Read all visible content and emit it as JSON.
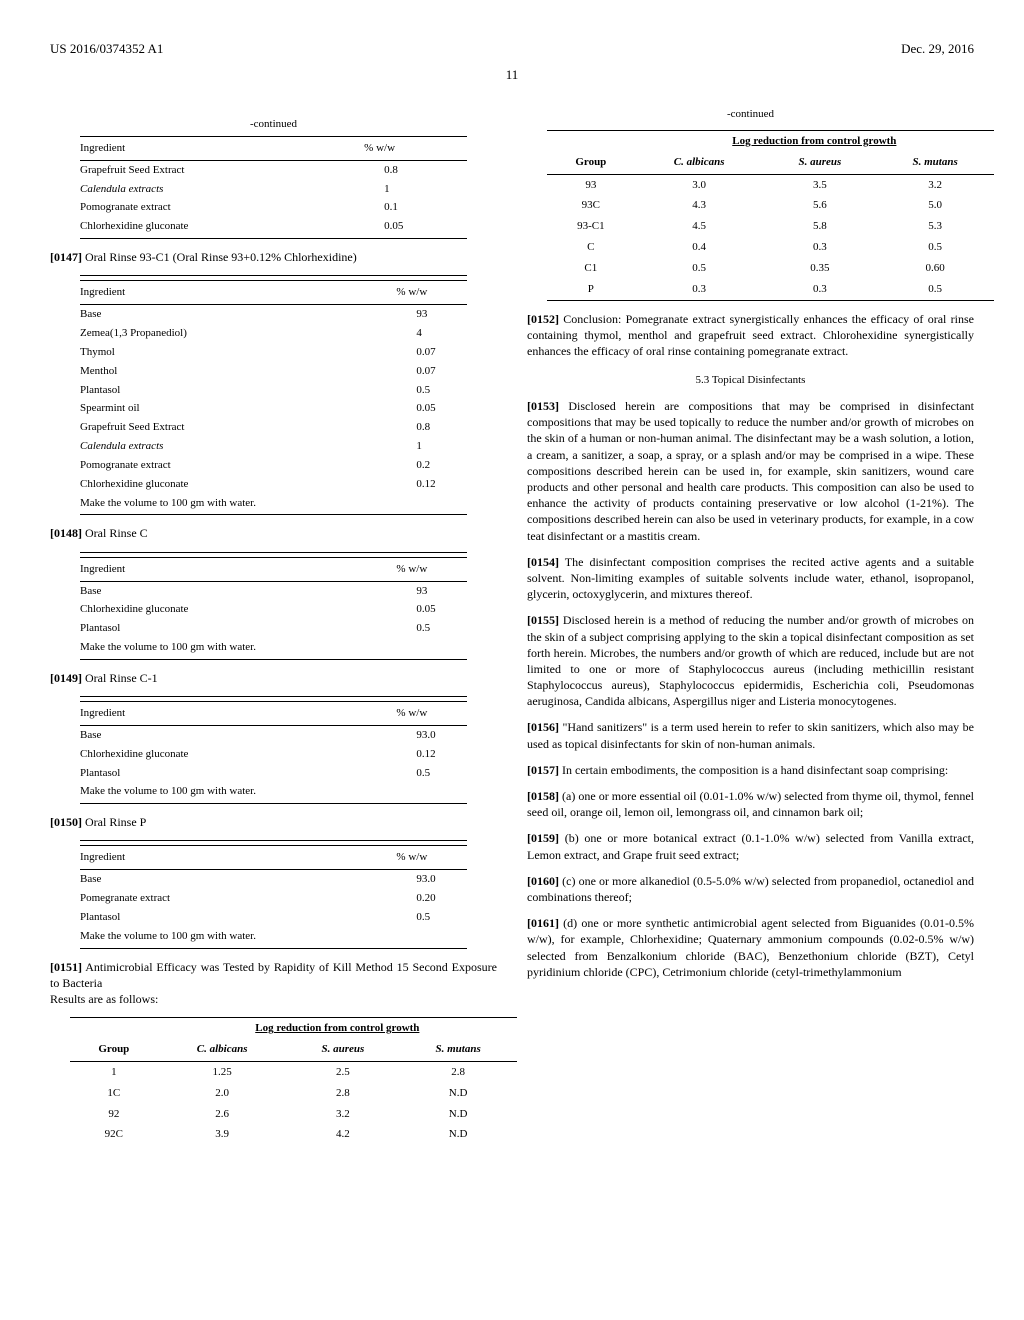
{
  "header": {
    "left": "US 2016/0374352 A1",
    "right": "Dec. 29, 2016"
  },
  "page_number": "11",
  "col1": {
    "table1": {
      "continued": "-continued",
      "headers": [
        "Ingredient",
        "% w/w"
      ],
      "rows": [
        [
          "Grapefruit Seed Extract",
          "0.8"
        ],
        [
          "Calendula extracts",
          "1"
        ],
        [
          "Pomogranate extract",
          "0.1"
        ],
        [
          "Chlorhexidine gluconate",
          "0.05"
        ]
      ]
    },
    "para147": {
      "num": "[0147]",
      "text": "Oral Rinse 93-C1 (Oral Rinse 93+0.12% Chlorhexidine)"
    },
    "table2": {
      "headers": [
        "Ingredient",
        "% w/w"
      ],
      "rows": [
        [
          "Base",
          "93"
        ],
        [
          "Zemea(1,3 Propanediol)",
          "4"
        ],
        [
          "Thymol",
          "0.07"
        ],
        [
          "Menthol",
          "0.07"
        ],
        [
          "Plantasol",
          "0.5"
        ],
        [
          "Spearmint oil",
          "0.05"
        ],
        [
          "Grapefruit Seed Extract",
          "0.8"
        ],
        [
          "Calendula extracts",
          "1"
        ],
        [
          "Pomogranate extract",
          "0.2"
        ],
        [
          "Chlorhexidine gluconate",
          "0.12"
        ],
        [
          "Make the volume to 100 gm with water.",
          ""
        ]
      ]
    },
    "para148": {
      "num": "[0148]",
      "text": "Oral Rinse C"
    },
    "table3": {
      "headers": [
        "Ingredient",
        "% w/w"
      ],
      "rows": [
        [
          "Base",
          "93"
        ],
        [
          "Chlorhexidine gluconate",
          "0.05"
        ],
        [
          "Plantasol",
          "0.5"
        ],
        [
          "Make the volume to 100 gm with water.",
          ""
        ]
      ]
    },
    "para149": {
      "num": "[0149]",
      "text": "Oral Rinse C-1"
    },
    "table4": {
      "headers": [
        "Ingredient",
        "% w/w"
      ],
      "rows": [
        [
          "Base",
          "93.0"
        ],
        [
          "Chlorhexidine gluconate",
          "0.12"
        ],
        [
          "Plantasol",
          "0.5"
        ],
        [
          "Make the volume to 100 gm with water.",
          ""
        ]
      ]
    },
    "para150": {
      "num": "[0150]",
      "text": "Oral Rinse P"
    },
    "table5": {
      "headers": [
        "Ingredient",
        "% w/w"
      ],
      "rows": [
        [
          "Base",
          "93.0"
        ],
        [
          "Pomegranate extract",
          "0.20"
        ],
        [
          "Plantasol",
          "0.5"
        ],
        [
          "Make the volume to 100 gm with water.",
          ""
        ]
      ]
    },
    "para151": {
      "num": "[0151]",
      "text": "Antimicrobial Efficacy was Tested by Rapidity of Kill Method 15 Second Exposure to Bacteria",
      "sub": "Results are as follows:"
    },
    "table6": {
      "spanhead": "Log reduction from control growth",
      "headers": [
        "Group",
        "C. albicans",
        "S. aureus",
        "S. mutans"
      ],
      "rows": [
        [
          "1",
          "1.25",
          "2.5",
          "2.8"
        ],
        [
          "1C",
          "2.0",
          "2.8",
          "N.D"
        ],
        [
          "92",
          "2.6",
          "3.2",
          "N.D"
        ],
        [
          "92C",
          "3.9",
          "4.2",
          "N.D"
        ]
      ]
    }
  },
  "col2": {
    "table6b": {
      "continued": "-continued",
      "spanhead": "Log reduction from control growth",
      "headers": [
        "Group",
        "C. albicans",
        "S. aureus",
        "S. mutans"
      ],
      "rows": [
        [
          "93",
          "3.0",
          "3.5",
          "3.2"
        ],
        [
          "93C",
          "4.3",
          "5.6",
          "5.0"
        ],
        [
          "93-C1",
          "4.5",
          "5.8",
          "5.3"
        ],
        [
          "C",
          "0.4",
          "0.3",
          "0.5"
        ],
        [
          "C1",
          "0.5",
          "0.35",
          "0.60"
        ],
        [
          "P",
          "0.3",
          "0.3",
          "0.5"
        ]
      ]
    },
    "para152": {
      "num": "[0152]",
      "text": "Conclusion: Pomegranate extract synergistically enhances the efficacy of oral rinse containing thymol, menthol and grapefruit seed extract. Chlorohexidine synergistically enhances the efficacy of oral rinse containing pomegranate extract."
    },
    "section53": "5.3 Topical Disinfectants",
    "para153": {
      "num": "[0153]",
      "text": "Disclosed herein are compositions that may be comprised in disinfectant compositions that may be used topically to reduce the number and/or growth of microbes on the skin of a human or non-human animal. The disinfectant may be a wash solution, a lotion, a cream, a sanitizer, a soap, a spray, or a splash and/or may be comprised in a wipe. These compositions described herein can be used in, for example, skin sanitizers, wound care products and other personal and health care products. This composition can also be used to enhance the activity of products containing preservative or low alcohol (1-21%). The compositions described herein can also be used in veterinary products, for example, in a cow teat disinfectant or a mastitis cream."
    },
    "para154": {
      "num": "[0154]",
      "text": "The disinfectant composition comprises the recited active agents and a suitable solvent. Non-limiting examples of suitable solvents include water, ethanol, isopropanol, glycerin, octoxyglycerin, and mixtures thereof."
    },
    "para155": {
      "num": "[0155]",
      "text": "Disclosed herein is a method of reducing the number and/or growth of microbes on the skin of a subject comprising applying to the skin a topical disinfectant composition as set forth herein. Microbes, the numbers and/or growth of which are reduced, include but are not limited to one or more of Staphylococcus aureus (including methicillin resistant Staphylococcus aureus), Staphylococcus epidermidis, Escherichia coli, Pseudomonas aeruginosa, Candida albicans, Aspergillus niger and Listeria monocytogenes."
    },
    "para156": {
      "num": "[0156]",
      "text": "\"Hand sanitizers\" is a term used herein to refer to skin sanitizers, which also may be used as topical disinfectants for skin of non-human animals."
    },
    "para157": {
      "num": "[0157]",
      "text": "In certain embodiments, the composition is a hand disinfectant soap comprising:"
    },
    "para158": {
      "num": "[0158]",
      "text": "(a) one or more essential oil (0.01-1.0% w/w) selected from thyme oil, thymol, fennel seed oil, orange oil, lemon oil, lemongrass oil, and cinnamon bark oil;"
    },
    "para159": {
      "num": "[0159]",
      "text": "(b) one or more botanical extract (0.1-1.0% w/w) selected from Vanilla extract, Lemon extract, and Grape fruit seed extract;"
    },
    "para160": {
      "num": "[0160]",
      "text": "(c) one or more alkanediol (0.5-5.0% w/w) selected from propanediol, octanediol and combinations thereof;"
    },
    "para161": {
      "num": "[0161]",
      "text": "(d) one or more synthetic antimicrobial agent selected from Biguanides (0.01-0.5% w/w), for example, Chlorhexidine; Quaternary ammonium compounds (0.02-0.5% w/w) selected from Benzalkonium chloride (BAC), Benzethonium chloride (BZT), Cetyl pyridinium chloride (CPC), Cetrimonium chloride (cetyl-trimethylammonium"
    }
  }
}
